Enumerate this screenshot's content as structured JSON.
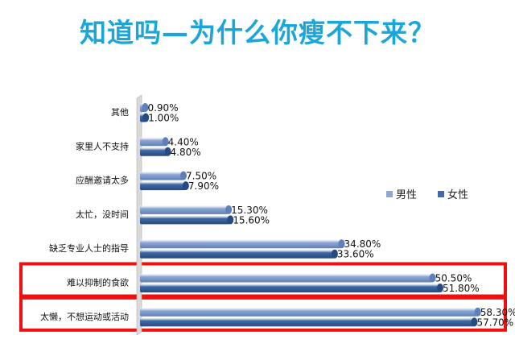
{
  "title": "知道吗—为什么你瘦不下来？",
  "colors": {
    "title": "#1aa6d9",
    "male": "#8fa8d4",
    "male_dark": "#5e7fb8",
    "female": "#3f6aa6",
    "female_dark": "#274a82",
    "highlight": "#ee1111"
  },
  "chart_data": {
    "type": "bar",
    "orientation": "horizontal",
    "categories": [
      "其他",
      "家里人不支持",
      "应酬邀请太多",
      "太忙，没时间",
      "缺乏专业人士的指导",
      "难以抑制的食欲",
      "太懒，不想运动或活动"
    ],
    "series": [
      {
        "name": "男性",
        "values": [
          0.9,
          4.4,
          7.5,
          15.3,
          34.8,
          50.5,
          58.3
        ],
        "labels": [
          "0.90%",
          "4.40%",
          "7.50%",
          "15.30%",
          "34.80%",
          "50.50%",
          "58.30%"
        ]
      },
      {
        "name": "女性",
        "values": [
          1.0,
          4.8,
          7.9,
          15.6,
          33.6,
          51.8,
          57.7
        ],
        "labels": [
          "1.00%",
          "4.80%",
          "7.90%",
          "15.60%",
          "33.60%",
          "51.80%",
          "57.70%"
        ]
      }
    ],
    "xlim": [
      0,
      60
    ],
    "legend_position": "right",
    "grid": false,
    "highlighted_categories": [
      "难以抑制的食欲",
      "太懒，不想运动或活动"
    ]
  }
}
